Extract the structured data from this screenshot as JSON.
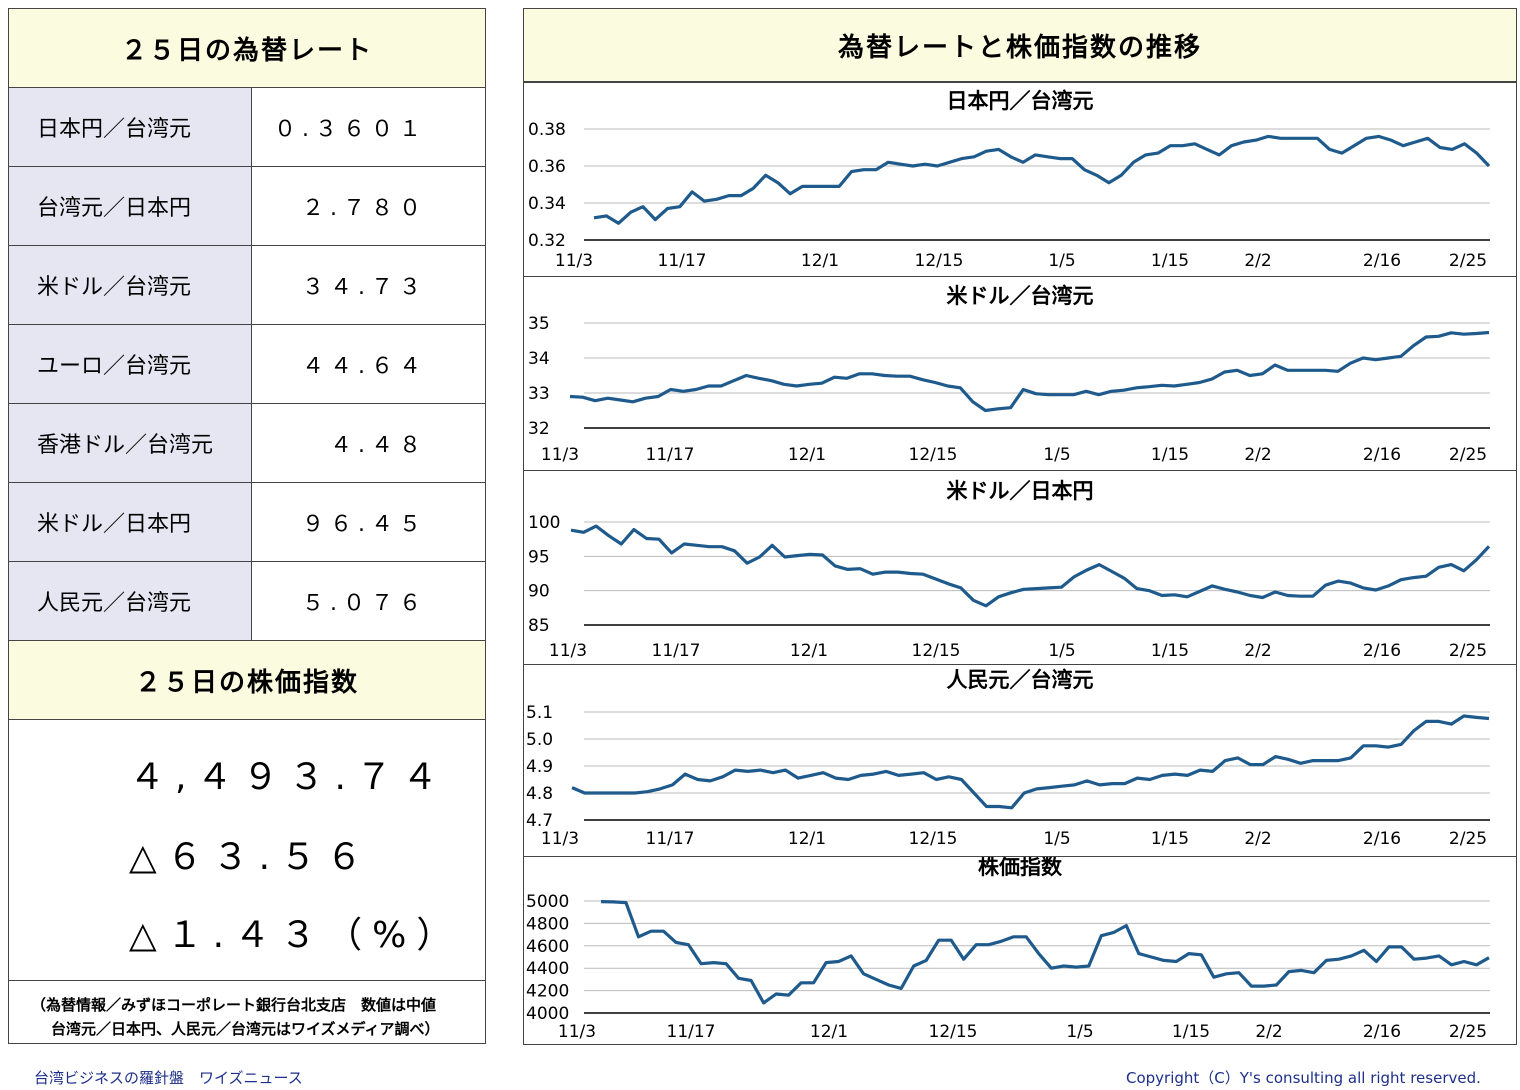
{
  "rates_section": {
    "title": "２５日の為替レート",
    "rows": [
      {
        "label": "日本円／台湾元",
        "value": "０.３６０１"
      },
      {
        "label": "台湾元／日本円",
        "value": "２.７８０"
      },
      {
        "label": "米ドル／台湾元",
        "value": "３４.７３"
      },
      {
        "label": "ユーロ／台湾元",
        "value": "４４.６４"
      },
      {
        "label": "香港ドル／台湾元",
        "value": "４.４８"
      },
      {
        "label": "米ドル／日本円",
        "value": "９６.４５"
      },
      {
        "label": "人民元／台湾元",
        "value": "５.０７６"
      }
    ]
  },
  "stock_section": {
    "title": "２５日の株価指数",
    "index": "４,４９３.７４",
    "change": "△６３.５６",
    "change_pct": "△１.４３（%）"
  },
  "source_note": {
    "line1": "（為替情報／みずほコーポレート銀行台北支店　数値は中値",
    "line2": "台湾元／日本円、人民元／台湾元はワイズメディア調べ）"
  },
  "charts_header": "為替レートと株価指数の推移",
  "footer": {
    "left": "台湾ビジネスの羅針盤　ワイズニュース",
    "right": "Copyright（C）Y's consulting all right reserved."
  },
  "colors": {
    "line": "#1f5a8c",
    "header_bg": "#fbfbe0",
    "label_bg": "#e6e6f2"
  },
  "chart_data": [
    {
      "type": "line",
      "title": "日本円／台湾元",
      "x_ticks": [
        "11/3",
        "11/17",
        "12/1",
        "12/15",
        "1/5",
        "1/15",
        "2/2",
        "2/16",
        "2/25"
      ],
      "y_ticks": [
        "0.32",
        "0.34",
        "0.36",
        "0.38"
      ],
      "ylim": [
        0.32,
        0.38
      ],
      "grid": true,
      "values": [
        0.332,
        0.333,
        0.329,
        0.335,
        0.338,
        0.331,
        0.337,
        0.338,
        0.346,
        0.341,
        0.342,
        0.344,
        0.344,
        0.348,
        0.355,
        0.351,
        0.345,
        0.349,
        0.349,
        0.349,
        0.349,
        0.357,
        0.358,
        0.358,
        0.362,
        0.361,
        0.36,
        0.361,
        0.36,
        0.362,
        0.364,
        0.365,
        0.368,
        0.369,
        0.365,
        0.362,
        0.366,
        0.365,
        0.364,
        0.364,
        0.358,
        0.355,
        0.351,
        0.355,
        0.362,
        0.366,
        0.367,
        0.371,
        0.371,
        0.372,
        0.369,
        0.366,
        0.371,
        0.373,
        0.374,
        0.376,
        0.375,
        0.375,
        0.375,
        0.375,
        0.369,
        0.367,
        0.371,
        0.375,
        0.376,
        0.374,
        0.371,
        0.373,
        0.375,
        0.37,
        0.369,
        0.372,
        0.367,
        0.36
      ]
    },
    {
      "type": "line",
      "title": "米ドル／台湾元",
      "x_ticks": [
        "11/3",
        "11/17",
        "12/1",
        "12/15",
        "1/5",
        "1/15",
        "2/2",
        "2/16",
        "2/25"
      ],
      "y_ticks": [
        "32",
        "33",
        "34",
        "35"
      ],
      "ylim": [
        32,
        35
      ],
      "grid": true,
      "values": [
        32.9,
        32.88,
        32.78,
        32.85,
        32.8,
        32.75,
        32.85,
        32.9,
        33.1,
        33.05,
        33.1,
        33.2,
        33.2,
        33.35,
        33.5,
        33.42,
        33.35,
        33.25,
        33.2,
        33.25,
        33.28,
        33.45,
        33.42,
        33.55,
        33.55,
        33.5,
        33.48,
        33.48,
        33.38,
        33.3,
        33.2,
        33.15,
        32.75,
        32.5,
        32.55,
        32.58,
        33.1,
        32.98,
        32.95,
        32.95,
        32.95,
        33.05,
        32.95,
        33.05,
        33.08,
        33.15,
        33.18,
        33.22,
        33.2,
        33.25,
        33.3,
        33.4,
        33.6,
        33.65,
        33.5,
        33.55,
        33.8,
        33.65,
        33.65,
        33.65,
        33.65,
        33.62,
        33.85,
        34.0,
        33.95,
        34.0,
        34.05,
        34.35,
        34.6,
        34.62,
        34.72,
        34.68,
        34.7,
        34.73
      ]
    },
    {
      "type": "line",
      "title": "米ドル／日本円",
      "x_ticks": [
        "11/3",
        "11/17",
        "12/1",
        "12/15",
        "1/5",
        "1/15",
        "2/2",
        "2/16",
        "2/25"
      ],
      "y_ticks": [
        "85",
        "90",
        "95",
        "100"
      ],
      "ylim": [
        85,
        100
      ],
      "grid": true,
      "values": [
        98.8,
        98.5,
        99.4,
        98.0,
        96.8,
        98.9,
        97.6,
        97.5,
        95.5,
        96.8,
        96.6,
        96.4,
        96.4,
        95.8,
        94.0,
        94.9,
        96.6,
        94.9,
        95.1,
        95.3,
        95.2,
        93.6,
        93.1,
        93.2,
        92.4,
        92.7,
        92.7,
        92.5,
        92.4,
        91.7,
        91.0,
        90.4,
        88.6,
        87.8,
        89.1,
        89.7,
        90.2,
        90.3,
        90.4,
        90.5,
        92.0,
        93.0,
        93.8,
        92.8,
        91.8,
        90.3,
        90.0,
        89.3,
        89.4,
        89.1,
        89.9,
        90.7,
        90.2,
        89.8,
        89.3,
        89.0,
        89.8,
        89.3,
        89.2,
        89.2,
        90.8,
        91.4,
        91.1,
        90.4,
        90.1,
        90.7,
        91.6,
        91.9,
        92.1,
        93.4,
        93.8,
        92.9,
        94.5,
        96.45
      ]
    },
    {
      "type": "line",
      "title": "人民元／台湾元",
      "x_ticks": [
        "11/3",
        "11/17",
        "12/1",
        "12/15",
        "1/5",
        "1/15",
        "2/2",
        "2/16",
        "2/25"
      ],
      "y_ticks": [
        "4.7",
        "4.8",
        "4.9",
        "5.0",
        "5.1"
      ],
      "ylim": [
        4.7,
        5.1
      ],
      "grid": true,
      "values": [
        4.82,
        4.8,
        4.8,
        4.8,
        4.8,
        4.8,
        4.805,
        4.815,
        4.83,
        4.87,
        4.85,
        4.845,
        4.86,
        4.885,
        4.88,
        4.885,
        4.875,
        4.885,
        4.855,
        4.865,
        4.875,
        4.855,
        4.85,
        4.865,
        4.87,
        4.88,
        4.865,
        4.87,
        4.875,
        4.85,
        4.86,
        4.85,
        4.8,
        4.75,
        4.75,
        4.745,
        4.8,
        4.815,
        4.82,
        4.825,
        4.83,
        4.845,
        4.83,
        4.835,
        4.835,
        4.855,
        4.85,
        4.865,
        4.87,
        4.865,
        4.885,
        4.88,
        4.92,
        4.93,
        4.905,
        4.905,
        4.935,
        4.925,
        4.91,
        4.92,
        4.92,
        4.92,
        4.93,
        4.975,
        4.975,
        4.97,
        4.98,
        5.03,
        5.065,
        5.065,
        5.055,
        5.085,
        5.08,
        5.076
      ]
    },
    {
      "type": "line",
      "title": "株価指数",
      "x_ticks": [
        "11/3",
        "11/17",
        "12/1",
        "12/15",
        "1/5",
        "1/15",
        "2/2",
        "2/16",
        "2/25"
      ],
      "y_ticks": [
        "4000",
        "4200",
        "4400",
        "4600",
        "4800",
        "5000"
      ],
      "ylim": [
        4000,
        5000
      ],
      "grid": true,
      "values": [
        4995,
        4992,
        4985,
        4680,
        4730,
        4730,
        4630,
        4610,
        4440,
        4450,
        4440,
        4310,
        4290,
        4090,
        4170,
        4160,
        4270,
        4270,
        4450,
        4460,
        4510,
        4350,
        4300,
        4250,
        4220,
        4420,
        4470,
        4650,
        4650,
        4480,
        4610,
        4610,
        4640,
        4680,
        4680,
        4530,
        4400,
        4420,
        4410,
        4420,
        4690,
        4720,
        4780,
        4530,
        4500,
        4470,
        4460,
        4530,
        4520,
        4320,
        4350,
        4360,
        4240,
        4240,
        4250,
        4370,
        4380,
        4360,
        4470,
        4480,
        4510,
        4560,
        4460,
        4590,
        4590,
        4480,
        4490,
        4510,
        4430,
        4460,
        4430,
        4494
      ]
    }
  ]
}
